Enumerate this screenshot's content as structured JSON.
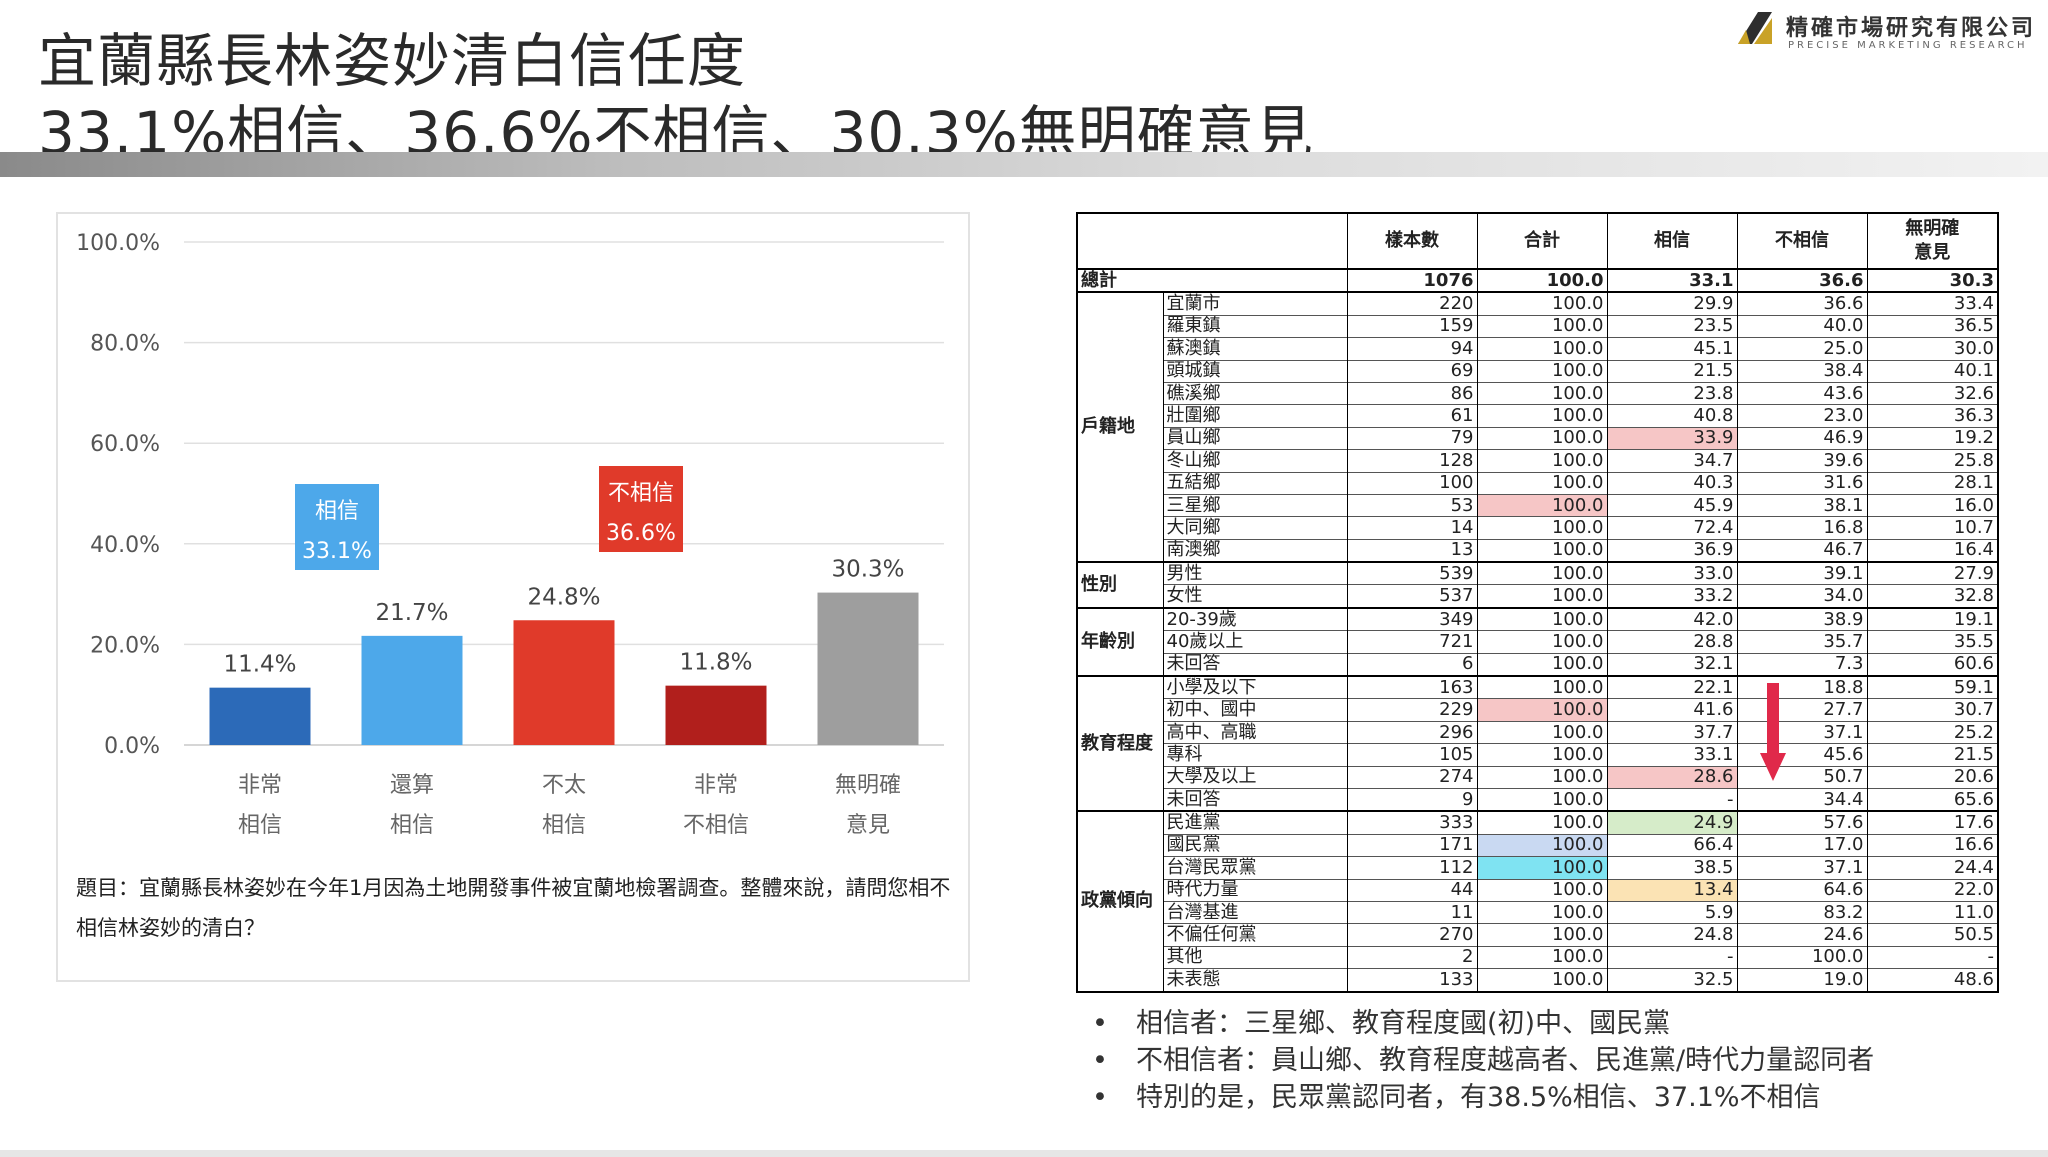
{
  "header": {
    "title_line1": "宜蘭縣長林姿妙清白信任度",
    "title_line2": "33.1%相信、36.6%不相信、30.3%無明確意見"
  },
  "logo": {
    "name_zh": "精確市場研究有限公司",
    "name_en": "PRECISE MARKETING RESEARCH",
    "colors": {
      "gold": "#c9a227",
      "dark": "#2e2e2e"
    }
  },
  "chart_data": {
    "type": "bar",
    "categories": [
      "非常\n相信",
      "還算\n相信",
      "不太\n相信",
      "非常\n不相信",
      "無明確\n意見"
    ],
    "values": [
      11.4,
      21.7,
      24.8,
      11.8,
      30.3
    ],
    "value_labels": [
      "11.4%",
      "21.7%",
      "24.8%",
      "11.8%",
      "30.3%"
    ],
    "colors": [
      "#2c6ab8",
      "#4da8ea",
      "#e03a2a",
      "#b11f1c",
      "#9e9e9e"
    ],
    "yticks": [
      "100.0%",
      "80.0%",
      "60.0%",
      "40.0%",
      "20.0%",
      "0.0%"
    ],
    "ylim": [
      0,
      100
    ],
    "grid": true,
    "callouts": [
      {
        "label": "相信",
        "value": "33.1%",
        "color": "#4da8ea"
      },
      {
        "label": "不相信",
        "value": "36.6%",
        "color": "#e03a2a"
      }
    ]
  },
  "question": "題目：宜蘭縣長林姿妙在今年1月因為土地開發事件被宜蘭地檢署調查。整體來說，請問您相不相信林姿妙的清白？",
  "table": {
    "headers": [
      "",
      "樣本數",
      "合計",
      "相信",
      "不相信",
      "無明確\n意見"
    ],
    "total": {
      "label": "總計",
      "n": "1076",
      "sum": "100.0",
      "trust": "33.1",
      "distrust": "36.6",
      "none": "30.3"
    },
    "groups": [
      {
        "name": "戶籍地",
        "rows": [
          [
            "宜蘭市",
            "220",
            "100.0",
            "29.9",
            "36.6",
            "33.4"
          ],
          [
            "羅東鎮",
            "159",
            "100.0",
            "23.5",
            "40.0",
            "36.5"
          ],
          [
            "蘇澳鎮",
            "94",
            "100.0",
            "45.1",
            "25.0",
            "30.0"
          ],
          [
            "頭城鎮",
            "69",
            "100.0",
            "21.5",
            "38.4",
            "40.1"
          ],
          [
            "礁溪鄉",
            "86",
            "100.0",
            "23.8",
            "43.6",
            "32.6"
          ],
          [
            "壯圍鄉",
            "61",
            "100.0",
            "40.8",
            "23.0",
            "36.3"
          ],
          [
            "員山鄉",
            "79",
            "100.0",
            "33.9",
            "46.9",
            "19.2"
          ],
          [
            "冬山鄉",
            "128",
            "100.0",
            "34.7",
            "39.6",
            "25.8"
          ],
          [
            "五結鄉",
            "100",
            "100.0",
            "40.3",
            "31.6",
            "28.1"
          ],
          [
            "三星鄉",
            "53",
            "100.0",
            "45.9",
            "38.1",
            "16.0"
          ],
          [
            "大同鄉",
            "14",
            "100.0",
            "72.4",
            "16.8",
            "10.7"
          ],
          [
            "南澳鄉",
            "13",
            "100.0",
            "36.9",
            "46.7",
            "16.4"
          ]
        ]
      },
      {
        "name": "性別",
        "rows": [
          [
            "男性",
            "539",
            "100.0",
            "33.0",
            "39.1",
            "27.9"
          ],
          [
            "女性",
            "537",
            "100.0",
            "33.2",
            "34.0",
            "32.8"
          ]
        ]
      },
      {
        "name": "年齡別",
        "rows": [
          [
            "20-39歲",
            "349",
            "100.0",
            "42.0",
            "38.9",
            "19.1"
          ],
          [
            "40歲以上",
            "721",
            "100.0",
            "28.8",
            "35.7",
            "35.5"
          ],
          [
            "未回答",
            "6",
            "100.0",
            "32.1",
            "7.3",
            "60.6"
          ]
        ]
      },
      {
        "name": "教育程度",
        "rows": [
          [
            "小學及以下",
            "163",
            "100.0",
            "22.1",
            "18.8",
            "59.1"
          ],
          [
            "初中、國中",
            "229",
            "100.0",
            "41.6",
            "27.7",
            "30.7"
          ],
          [
            "高中、高職",
            "296",
            "100.0",
            "37.7",
            "37.1",
            "25.2"
          ],
          [
            "專科",
            "105",
            "100.0",
            "33.1",
            "45.6",
            "21.5"
          ],
          [
            "大學及以上",
            "274",
            "100.0",
            "28.6",
            "50.7",
            "20.6"
          ],
          [
            "未回答",
            "9",
            "100.0",
            "-",
            "34.4",
            "65.6"
          ]
        ]
      },
      {
        "name": "政黨傾向",
        "rows": [
          [
            "民進黨",
            "333",
            "100.0",
            "24.9",
            "57.6",
            "17.6"
          ],
          [
            "國民黨",
            "171",
            "100.0",
            "66.4",
            "17.0",
            "16.6"
          ],
          [
            "台灣民眾黨",
            "112",
            "100.0",
            "38.5",
            "37.1",
            "24.4"
          ],
          [
            "時代力量",
            "44",
            "100.0",
            "13.4",
            "64.6",
            "22.0"
          ],
          [
            "台灣基進",
            "11",
            "100.0",
            "5.9",
            "83.2",
            "11.0"
          ],
          [
            "不偏任何黨",
            "270",
            "100.0",
            "24.8",
            "24.6",
            "50.5"
          ],
          [
            "其他",
            "2",
            "100.0",
            "-",
            "100.0",
            "-"
          ],
          [
            "未表態",
            "133",
            "100.0",
            "32.5",
            "19.0",
            "48.6"
          ]
        ]
      }
    ],
    "highlights": [
      {
        "group": 0,
        "row": 6,
        "col": 4,
        "color": "#f6c6c6"
      },
      {
        "group": 0,
        "row": 9,
        "col": 3,
        "color": "#f6c6c6"
      },
      {
        "group": 3,
        "row": 1,
        "col": 3,
        "color": "#f6c6c6"
      },
      {
        "group": 3,
        "row": 4,
        "col": 4,
        "color": "#f6c6c6"
      },
      {
        "group": 4,
        "row": 0,
        "col": 4,
        "color": "#d6ecc9"
      },
      {
        "group": 4,
        "row": 1,
        "col": 3,
        "color": "#c9d9f2"
      },
      {
        "group": 4,
        "row": 2,
        "col": 3,
        "color": "#7fe3f2"
      },
      {
        "group": 4,
        "row": 3,
        "col": 4,
        "color": "#fbe3b4"
      }
    ],
    "arrow_color": "#e0294a"
  },
  "bullets": [
    "相信者：三星鄉、教育程度國(初)中、國民黨",
    "不相信者：員山鄉、教育程度越高者、民進黨/時代力量認同者",
    "特別的是，民眾黨認同者，有38.5%相信、37.1%不相信"
  ],
  "bullet_symbol": "•"
}
